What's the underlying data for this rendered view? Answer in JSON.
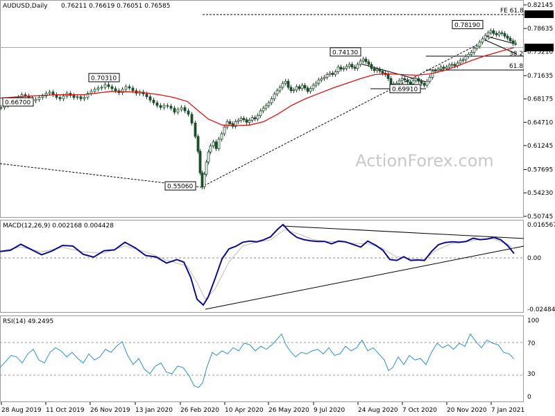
{
  "chart_data": {
    "type": "candlestick",
    "symbol_header": "AUDUSD,Daily",
    "ohlc_header": "0.76211 0.76619 0.76051 0.76585",
    "last_price": "0.76585",
    "x_ticks": [
      "28 Aug 2019",
      "11 Oct 2019",
      "26 Nov 2019",
      "13 Jan 2020",
      "26 Feb 2020",
      "10 Apr 2020",
      "26 May 2020",
      "9 Jul 2020",
      "24 Aug 2020",
      "7 Oct 2020",
      "20 Nov 2020",
      "7 Jan 2021"
    ],
    "price_ticks": [
      "0.82145",
      "0.78635",
      "0.75210",
      "0.71635",
      "0.68175",
      "0.64710",
      "0.61245",
      "0.57695",
      "0.54230",
      "0.50745"
    ],
    "price_ylim": [
      0.50745,
      0.82145
    ],
    "fe_label": "FE 61.8",
    "fe_level": "0.81350",
    "fib_right_labels": [
      "38.2",
      "61.8"
    ],
    "annotations": [
      {
        "text": "0.66700",
        "price": 0.667
      },
      {
        "text": "0.70310",
        "price": 0.7031
      },
      {
        "text": "0.55060",
        "price": 0.5506
      },
      {
        "text": "0.74130",
        "price": 0.7413
      },
      {
        "text": "0.69910",
        "price": 0.6991
      },
      {
        "text": "0.78190",
        "price": 0.7819
      }
    ],
    "watermark": "ActionForex.com",
    "macd_header": "MACD(12,26,9) 0.002168 0.004428",
    "macd_ticks": [
      "0.016567",
      "0.00",
      "-0.02484"
    ],
    "rsi_header": "RSI(14) 49.2495",
    "rsi_ticks": [
      "100",
      "70",
      "30",
      "0"
    ],
    "price_series": [
      [
        0,
        0.669
      ],
      [
        5,
        0.672
      ],
      [
        10,
        0.675
      ],
      [
        15,
        0.676
      ],
      [
        20,
        0.681
      ],
      [
        25,
        0.684
      ],
      [
        30,
        0.688
      ],
      [
        35,
        0.686
      ],
      [
        40,
        0.682
      ],
      [
        45,
        0.679
      ],
      [
        50,
        0.681
      ],
      [
        55,
        0.684
      ],
      [
        60,
        0.686
      ],
      [
        65,
        0.69
      ],
      [
        70,
        0.692
      ],
      [
        75,
        0.688
      ],
      [
        80,
        0.684
      ],
      [
        85,
        0.682
      ],
      [
        90,
        0.686
      ],
      [
        95,
        0.69
      ],
      [
        100,
        0.687
      ],
      [
        105,
        0.684
      ],
      [
        110,
        0.685
      ],
      [
        115,
        0.682
      ],
      [
        120,
        0.684
      ],
      [
        125,
        0.69
      ],
      [
        130,
        0.693
      ],
      [
        135,
        0.696
      ],
      [
        140,
        0.698
      ],
      [
        145,
        0.699
      ],
      [
        150,
        0.703
      ],
      [
        155,
        0.7
      ],
      [
        160,
        0.697
      ],
      [
        165,
        0.694
      ],
      [
        170,
        0.691
      ],
      [
        175,
        0.696
      ],
      [
        180,
        0.7
      ],
      [
        185,
        0.698
      ],
      [
        190,
        0.694
      ],
      [
        195,
        0.69
      ],
      [
        200,
        0.692
      ],
      [
        205,
        0.689
      ],
      [
        210,
        0.685
      ],
      [
        215,
        0.68
      ],
      [
        220,
        0.676
      ],
      [
        225,
        0.672
      ],
      [
        230,
        0.669
      ],
      [
        235,
        0.672
      ],
      [
        240,
        0.671
      ],
      [
        245,
        0.668
      ],
      [
        250,
        0.662
      ],
      [
        255,
        0.666
      ],
      [
        260,
        0.669
      ],
      [
        265,
        0.664
      ],
      [
        270,
        0.659
      ],
      [
        275,
        0.646
      ],
      [
        280,
        0.626
      ],
      [
        284,
        0.604
      ],
      [
        287,
        0.572
      ],
      [
        290,
        0.551
      ],
      [
        293,
        0.57
      ],
      [
        296,
        0.588
      ],
      [
        299,
        0.603
      ],
      [
        302,
        0.612
      ],
      [
        306,
        0.618
      ],
      [
        310,
        0.608
      ],
      [
        314,
        0.622
      ],
      [
        318,
        0.63
      ],
      [
        322,
        0.64
      ],
      [
        326,
        0.648
      ],
      [
        330,
        0.645
      ],
      [
        334,
        0.641
      ],
      [
        338,
        0.648
      ],
      [
        342,
        0.65
      ],
      [
        346,
        0.653
      ],
      [
        350,
        0.651
      ],
      [
        354,
        0.647
      ],
      [
        358,
        0.65
      ],
      [
        362,
        0.654
      ],
      [
        366,
        0.652
      ],
      [
        370,
        0.657
      ],
      [
        374,
        0.664
      ],
      [
        378,
        0.668
      ],
      [
        382,
        0.672
      ],
      [
        386,
        0.676
      ],
      [
        390,
        0.682
      ],
      [
        394,
        0.689
      ],
      [
        398,
        0.694
      ],
      [
        402,
        0.699
      ],
      [
        406,
        0.705
      ],
      [
        410,
        0.708
      ],
      [
        414,
        0.699
      ],
      [
        418,
        0.694
      ],
      [
        422,
        0.695
      ],
      [
        426,
        0.7
      ],
      [
        430,
        0.697
      ],
      [
        434,
        0.702
      ],
      [
        438,
        0.698
      ],
      [
        442,
        0.693
      ],
      [
        446,
        0.697
      ],
      [
        450,
        0.702
      ],
      [
        454,
        0.705
      ],
      [
        458,
        0.71
      ],
      [
        462,
        0.712
      ],
      [
        466,
        0.714
      ],
      [
        470,
        0.718
      ],
      [
        474,
        0.72
      ],
      [
        478,
        0.718
      ],
      [
        482,
        0.722
      ],
      [
        486,
        0.729
      ],
      [
        490,
        0.726
      ],
      [
        494,
        0.727
      ],
      [
        498,
        0.73
      ],
      [
        502,
        0.733
      ],
      [
        506,
        0.729
      ],
      [
        510,
        0.727
      ],
      [
        514,
        0.733
      ],
      [
        518,
        0.738
      ],
      [
        522,
        0.741
      ],
      [
        526,
        0.737
      ],
      [
        530,
        0.733
      ],
      [
        534,
        0.727
      ],
      [
        538,
        0.724
      ],
      [
        542,
        0.726
      ],
      [
        546,
        0.723
      ],
      [
        550,
        0.72
      ],
      [
        554,
        0.718
      ],
      [
        558,
        0.712
      ],
      [
        562,
        0.704
      ],
      [
        566,
        0.699
      ],
      [
        570,
        0.705
      ],
      [
        574,
        0.709
      ],
      [
        578,
        0.712
      ],
      [
        582,
        0.71
      ],
      [
        586,
        0.707
      ],
      [
        590,
        0.704
      ],
      [
        594,
        0.709
      ],
      [
        598,
        0.712
      ],
      [
        602,
        0.708
      ],
      [
        606,
        0.705
      ],
      [
        610,
        0.702
      ],
      [
        614,
        0.708
      ],
      [
        618,
        0.714
      ],
      [
        622,
        0.723
      ],
      [
        626,
        0.724
      ],
      [
        630,
        0.726
      ],
      [
        634,
        0.729
      ],
      [
        638,
        0.727
      ],
      [
        642,
        0.729
      ],
      [
        646,
        0.732
      ],
      [
        650,
        0.733
      ],
      [
        654,
        0.731
      ],
      [
        658,
        0.735
      ],
      [
        662,
        0.739
      ],
      [
        666,
        0.74
      ],
      [
        670,
        0.745
      ],
      [
        674,
        0.748
      ],
      [
        678,
        0.751
      ],
      [
        682,
        0.757
      ],
      [
        686,
        0.76
      ],
      [
        690,
        0.766
      ],
      [
        694,
        0.771
      ],
      [
        698,
        0.776
      ],
      [
        702,
        0.78
      ],
      [
        706,
        0.783
      ],
      [
        710,
        0.779
      ],
      [
        714,
        0.777
      ],
      [
        718,
        0.78
      ],
      [
        722,
        0.779
      ],
      [
        726,
        0.775
      ],
      [
        730,
        0.772
      ],
      [
        734,
        0.768
      ],
      [
        738,
        0.764
      ],
      [
        741,
        0.7659
      ]
    ],
    "ema_series": [
      [
        0,
        0.683
      ],
      [
        40,
        0.686
      ],
      [
        80,
        0.688
      ],
      [
        120,
        0.688
      ],
      [
        160,
        0.693
      ],
      [
        200,
        0.692
      ],
      [
        230,
        0.688
      ],
      [
        250,
        0.684
      ],
      [
        270,
        0.678
      ],
      [
        285,
        0.665
      ],
      [
        300,
        0.652
      ],
      [
        320,
        0.643
      ],
      [
        340,
        0.642
      ],
      [
        360,
        0.643
      ],
      [
        380,
        0.648
      ],
      [
        400,
        0.659
      ],
      [
        420,
        0.672
      ],
      [
        440,
        0.682
      ],
      [
        460,
        0.69
      ],
      [
        480,
        0.698
      ],
      [
        500,
        0.705
      ],
      [
        520,
        0.712
      ],
      [
        540,
        0.718
      ],
      [
        560,
        0.719
      ],
      [
        580,
        0.718
      ],
      [
        600,
        0.717
      ],
      [
        620,
        0.719
      ],
      [
        640,
        0.724
      ],
      [
        660,
        0.731
      ],
      [
        680,
        0.739
      ],
      [
        700,
        0.746
      ],
      [
        720,
        0.752
      ],
      [
        741,
        0.758
      ]
    ],
    "macd_series": [
      [
        0,
        0.0032
      ],
      [
        15,
        0.0038
      ],
      [
        30,
        0.0068
      ],
      [
        45,
        0.0042
      ],
      [
        60,
        0.0016
      ],
      [
        75,
        0.0035
      ],
      [
        90,
        0.0062
      ],
      [
        105,
        0.0059
      ],
      [
        120,
        0.0018
      ],
      [
        135,
        0.0004
      ],
      [
        150,
        0.0036
      ],
      [
        165,
        0.004
      ],
      [
        180,
        0.0078
      ],
      [
        195,
        0.005
      ],
      [
        210,
        0.0012
      ],
      [
        225,
        0.0005
      ],
      [
        240,
        -0.0025
      ],
      [
        255,
        -0.0008
      ],
      [
        265,
        -0.002
      ],
      [
        275,
        -0.0095
      ],
      [
        284,
        -0.02
      ],
      [
        293,
        -0.0228
      ],
      [
        300,
        -0.019
      ],
      [
        310,
        -0.01
      ],
      [
        320,
        -0.0005
      ],
      [
        330,
        0.0045
      ],
      [
        340,
        0.0058
      ],
      [
        350,
        0.0078
      ],
      [
        360,
        0.0084
      ],
      [
        370,
        0.008
      ],
      [
        380,
        0.009
      ],
      [
        390,
        0.0105
      ],
      [
        400,
        0.0142
      ],
      [
        408,
        0.0166
      ],
      [
        418,
        0.0128
      ],
      [
        428,
        0.0102
      ],
      [
        438,
        0.0091
      ],
      [
        448,
        0.0085
      ],
      [
        458,
        0.0082
      ],
      [
        468,
        0.0082
      ],
      [
        478,
        0.007
      ],
      [
        488,
        0.0084
      ],
      [
        498,
        0.008
      ],
      [
        510,
        0.0066
      ],
      [
        520,
        0.0054
      ],
      [
        530,
        0.0084
      ],
      [
        542,
        0.0062
      ],
      [
        552,
        0.0038
      ],
      [
        562,
        -0.0008
      ],
      [
        572,
        -0.0012
      ],
      [
        582,
        0.0006
      ],
      [
        592,
        -0.0012
      ],
      [
        602,
        -0.001
      ],
      [
        612,
        -0.0012
      ],
      [
        622,
        0.0032
      ],
      [
        632,
        0.0066
      ],
      [
        642,
        0.0077
      ],
      [
        652,
        0.008
      ],
      [
        662,
        0.0078
      ],
      [
        672,
        0.0082
      ],
      [
        682,
        0.0098
      ],
      [
        692,
        0.0091
      ],
      [
        702,
        0.0094
      ],
      [
        712,
        0.0102
      ],
      [
        722,
        0.009
      ],
      [
        732,
        0.006
      ],
      [
        741,
        0.0022
      ]
    ],
    "signal_series": [
      [
        0,
        0.0034
      ],
      [
        30,
        0.0055
      ],
      [
        60,
        0.003
      ],
      [
        90,
        0.0052
      ],
      [
        120,
        0.003
      ],
      [
        150,
        0.0024
      ],
      [
        180,
        0.006
      ],
      [
        210,
        0.003
      ],
      [
        240,
        -0.001
      ],
      [
        270,
        -0.004
      ],
      [
        284,
        -0.012
      ],
      [
        296,
        -0.02
      ],
      [
        310,
        -0.015
      ],
      [
        330,
        -0.002
      ],
      [
        350,
        0.006
      ],
      [
        370,
        0.0078
      ],
      [
        390,
        0.009
      ],
      [
        410,
        0.014
      ],
      [
        430,
        0.012
      ],
      [
        450,
        0.0093
      ],
      [
        470,
        0.0082
      ],
      [
        490,
        0.008
      ],
      [
        510,
        0.0072
      ],
      [
        530,
        0.007
      ],
      [
        550,
        0.005
      ],
      [
        570,
        0.0008
      ],
      [
        590,
        -0.0004
      ],
      [
        610,
        -0.0008
      ],
      [
        630,
        0.004
      ],
      [
        650,
        0.007
      ],
      [
        670,
        0.0078
      ],
      [
        690,
        0.0092
      ],
      [
        710,
        0.0095
      ],
      [
        730,
        0.0072
      ],
      [
        741,
        0.0044
      ]
    ],
    "rsi_series": [
      [
        0,
        38
      ],
      [
        8,
        46
      ],
      [
        16,
        54
      ],
      [
        24,
        52
      ],
      [
        32,
        44
      ],
      [
        40,
        56
      ],
      [
        48,
        62
      ],
      [
        56,
        48
      ],
      [
        64,
        44
      ],
      [
        72,
        58
      ],
      [
        80,
        64
      ],
      [
        88,
        60
      ],
      [
        96,
        52
      ],
      [
        104,
        58
      ],
      [
        112,
        50
      ],
      [
        120,
        44
      ],
      [
        128,
        56
      ],
      [
        136,
        48
      ],
      [
        144,
        52
      ],
      [
        152,
        62
      ],
      [
        160,
        58
      ],
      [
        168,
        66
      ],
      [
        176,
        72
      ],
      [
        184,
        54
      ],
      [
        192,
        42
      ],
      [
        200,
        50
      ],
      [
        208,
        36
      ],
      [
        216,
        30
      ],
      [
        224,
        40
      ],
      [
        232,
        44
      ],
      [
        240,
        32
      ],
      [
        248,
        30
      ],
      [
        256,
        40
      ],
      [
        264,
        38
      ],
      [
        272,
        28
      ],
      [
        280,
        14
      ],
      [
        286,
        12
      ],
      [
        292,
        18
      ],
      [
        298,
        38
      ],
      [
        306,
        58
      ],
      [
        312,
        54
      ],
      [
        320,
        60
      ],
      [
        328,
        56
      ],
      [
        336,
        64
      ],
      [
        344,
        60
      ],
      [
        352,
        70
      ],
      [
        360,
        68
      ],
      [
        368,
        60
      ],
      [
        376,
        66
      ],
      [
        384,
        62
      ],
      [
        392,
        68
      ],
      [
        400,
        76
      ],
      [
        406,
        82
      ],
      [
        412,
        68
      ],
      [
        418,
        60
      ],
      [
        426,
        52
      ],
      [
        434,
        58
      ],
      [
        442,
        56
      ],
      [
        450,
        60
      ],
      [
        458,
        62
      ],
      [
        466,
        56
      ],
      [
        474,
        64
      ],
      [
        482,
        54
      ],
      [
        490,
        56
      ],
      [
        498,
        66
      ],
      [
        506,
        60
      ],
      [
        514,
        64
      ],
      [
        522,
        74
      ],
      [
        530,
        60
      ],
      [
        538,
        64
      ],
      [
        546,
        56
      ],
      [
        554,
        48
      ],
      [
        560,
        34
      ],
      [
        566,
        38
      ],
      [
        574,
        52
      ],
      [
        582,
        42
      ],
      [
        590,
        54
      ],
      [
        598,
        48
      ],
      [
        606,
        50
      ],
      [
        614,
        42
      ],
      [
        622,
        58
      ],
      [
        630,
        70
      ],
      [
        638,
        64
      ],
      [
        646,
        68
      ],
      [
        654,
        62
      ],
      [
        662,
        70
      ],
      [
        670,
        66
      ],
      [
        678,
        82
      ],
      [
        686,
        72
      ],
      [
        694,
        64
      ],
      [
        702,
        74
      ],
      [
        710,
        70
      ],
      [
        718,
        68
      ],
      [
        726,
        58
      ],
      [
        734,
        56
      ],
      [
        741,
        49.25
      ]
    ]
  }
}
